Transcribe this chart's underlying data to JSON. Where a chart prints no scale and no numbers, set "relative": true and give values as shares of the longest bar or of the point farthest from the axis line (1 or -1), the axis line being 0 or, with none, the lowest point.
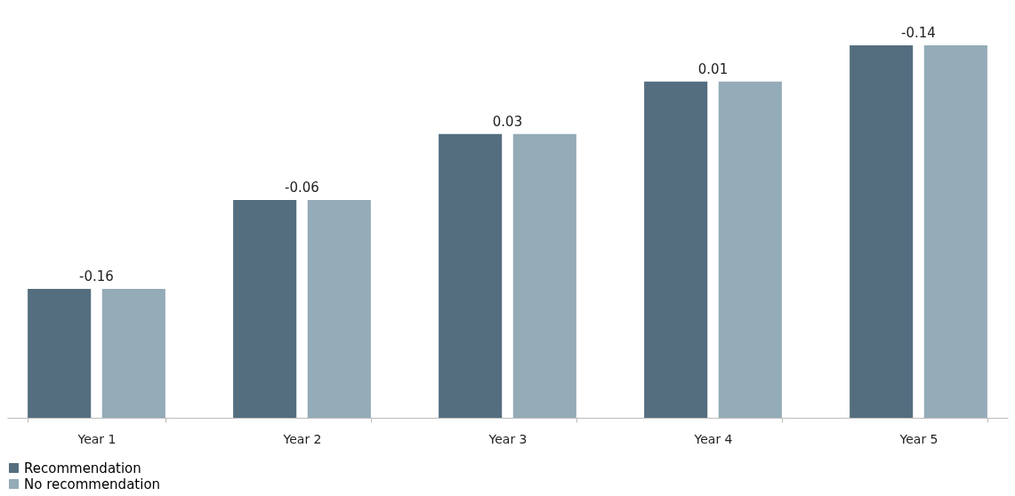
{
  "chart_data": {
    "type": "bar",
    "relative": true,
    "categories": [
      "Year 1",
      "Year 2",
      "Year 3",
      "Year 4",
      "Year 5"
    ],
    "series": [
      {
        "name": "Recommendation",
        "color": "#546e7f",
        "values": [
          0.346,
          0.585,
          0.762,
          0.903,
          1
        ]
      },
      {
        "name": "No recommendation",
        "color": "#94abb8",
        "values": [
          0.346,
          0.585,
          0.762,
          0.903,
          1
        ]
      }
    ],
    "annotations": [
      "-0.16",
      "-0.06",
      "0.03",
      "0.01",
      "-0.14"
    ],
    "legend": "bottom",
    "grid": false
  }
}
